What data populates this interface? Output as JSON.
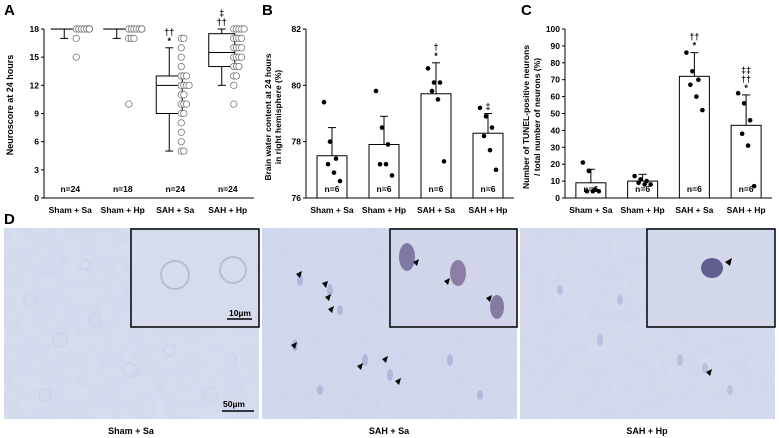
{
  "panels": {
    "A": {
      "letter": "A",
      "ylabel": "Neuroscore at 24 hours",
      "yticks": [
        "0",
        "3",
        "6",
        "9",
        "12",
        "15",
        "18"
      ]
    },
    "B": {
      "letter": "B",
      "ylabel_line1": "Brain water content at 24 hours",
      "ylabel_line2": "in right hemisphere (%)",
      "yticks": [
        "76",
        "78",
        "80",
        "82"
      ]
    },
    "C": {
      "letter": "C",
      "ylabel_line1": "Number of TUNEL-positive neurons",
      "ylabel_line2": "/ total number of neurons (%)",
      "yticks": [
        "0",
        "10",
        "20",
        "30",
        "40",
        "50",
        "60",
        "70",
        "80",
        "90",
        "100"
      ]
    },
    "D": {
      "letter": "D",
      "scale_inset": "10µm",
      "scale_main": "50µm",
      "captions": [
        "Sham + Sa",
        "SAH + Sa",
        "SAH + Hp"
      ]
    }
  },
  "chart_data": [
    {
      "panel": "A",
      "type": "box",
      "categories": [
        "Sham + Sa",
        "Sham + Hp",
        "SAH + Sa",
        "SAH + Hp"
      ],
      "ylabel": "Neuroscore at 24 hours",
      "ylim": [
        0,
        18
      ],
      "n_labels": [
        "n=24",
        "n=18",
        "n=24",
        "n=24"
      ],
      "boxes": [
        {
          "whisker_low": 17,
          "q1": 18,
          "median": 18,
          "q3": 18,
          "whisker_high": 18
        },
        {
          "whisker_low": 17,
          "q1": 18,
          "median": 18,
          "q3": 18,
          "whisker_high": 18
        },
        {
          "whisker_low": 5,
          "q1": 9,
          "median": 12,
          "q3": 13,
          "whisker_high": 16
        },
        {
          "whisker_low": 12,
          "q1": 14,
          "median": 15.5,
          "q3": 17.5,
          "whisker_high": 18
        }
      ],
      "points": [
        [
          18,
          18,
          18,
          18,
          18,
          18,
          18,
          18,
          18,
          18,
          18,
          18,
          18,
          18,
          18,
          18,
          18,
          18,
          18,
          18,
          18,
          18,
          17,
          15
        ],
        [
          18,
          18,
          18,
          18,
          18,
          18,
          18,
          18,
          18,
          18,
          18,
          18,
          18,
          18,
          17,
          17,
          17,
          10
        ],
        [
          17,
          17,
          16,
          15,
          13,
          13,
          12,
          12,
          12,
          11,
          10,
          10,
          10,
          9,
          9,
          8,
          7,
          6,
          5,
          5,
          14,
          12,
          11,
          13
        ],
        [
          18,
          18,
          18,
          18,
          17,
          17,
          17,
          16,
          16,
          16,
          15,
          15,
          15,
          14,
          14,
          14,
          13,
          13,
          12,
          10,
          17,
          16,
          15,
          18
        ]
      ],
      "annotations": [
        "",
        "",
        "††\n*",
        "‡\n††"
      ]
    },
    {
      "panel": "B",
      "type": "bar",
      "categories": [
        "Sham + Sa",
        "Sham + Hp",
        "SAH + Sa",
        "SAH + Hp"
      ],
      "ylabel": "Brain water content at 24 hours in right hemisphere (%)",
      "ylim": [
        76,
        82
      ],
      "values": [
        77.5,
        77.9,
        79.7,
        78.3
      ],
      "errors": [
        1.0,
        1.0,
        1.1,
        0.7
      ],
      "points": [
        [
          79.4,
          78.0,
          77.4,
          77.2,
          76.9,
          76.6
        ],
        [
          79.8,
          78.5,
          77.9,
          77.2,
          77.2,
          76.8
        ],
        [
          80.6,
          80.1,
          80.1,
          79.8,
          79.5,
          77.3
        ],
        [
          79.2,
          78.9,
          78.5,
          78.2,
          77.7,
          77.0
        ]
      ],
      "n_labels": [
        "n=6",
        "n=6",
        "n=6",
        "n=6"
      ],
      "annotations": [
        "",
        "",
        "†\n*",
        "‡"
      ]
    },
    {
      "panel": "C",
      "type": "bar",
      "categories": [
        "Sham + Sa",
        "Sham + Hp",
        "SAH + Sa",
        "SAH + Hp"
      ],
      "ylabel": "Number of TUNEL-positive neurons / total number of neurons (%)",
      "ylim": [
        0,
        100
      ],
      "values": [
        9,
        10,
        72,
        43
      ],
      "errors": [
        8,
        4,
        14,
        18
      ],
      "points": [
        [
          21,
          16,
          5,
          4,
          4,
          4
        ],
        [
          13,
          11,
          10,
          9,
          8,
          8
        ],
        [
          86,
          75,
          70,
          67,
          60,
          52
        ],
        [
          62,
          56,
          46,
          38,
          31,
          7
        ]
      ],
      "n_labels": [
        "n=6",
        "n=6",
        "n=6",
        "n=6"
      ],
      "annotations": [
        "",
        "",
        "††\n*",
        "‡‡\n††\n*"
      ]
    }
  ]
}
